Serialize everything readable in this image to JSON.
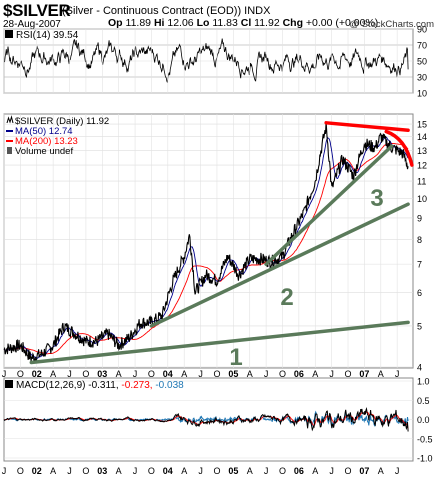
{
  "header": {
    "ticker": "$SILVER",
    "name": "(Silver - Continuous Contract (EOD))",
    "exchange": "INDX",
    "date": "28-Aug-2007",
    "open_label": "Op",
    "open": "11.89",
    "high_label": "Hi",
    "high": "12.06",
    "low_label": "Lo",
    "low": "11.83",
    "close_label": "Cl",
    "close": "11.92",
    "change_label": "Chg",
    "change": "+0.00 (+0.00%)",
    "watermark": "@ StockCharts.com"
  },
  "rsi_panel": {
    "label": "RSI(14) 39.54",
    "ticks": [
      "90",
      "70",
      "50",
      "30",
      "10"
    ]
  },
  "price_panel": {
    "legend": [
      {
        "text": "$SILVER (Daily) 11.92",
        "color": "#000000"
      },
      {
        "text": "MA(50) 12.74",
        "color": "#00008b"
      },
      {
        "text": "MA(200) 13.23",
        "color": "#ff0000"
      },
      {
        "text": "Volume undef",
        "color": "#000000"
      }
    ],
    "y_ticks": [
      "15",
      "14",
      "13",
      "12",
      "11",
      "10",
      "9",
      "8",
      "7",
      "6",
      "5",
      "4"
    ],
    "trendline_labels": [
      "1",
      "2",
      "3"
    ],
    "trendline_color": "#5a7a5a",
    "resistance_color": "#ff0000"
  },
  "macd_panel": {
    "label_prefix": "MACD(12,26,9)",
    "macd": "-0.311,",
    "signal": "-0.273,",
    "histogram": "-0.038",
    "macd_color": "#000000",
    "signal_color": "#ff0000",
    "hist_color": "#1f77b4",
    "ticks": [
      "1.0",
      "0.5",
      "0.0",
      "-0.5",
      "-1.0"
    ]
  },
  "x_axis": {
    "labels": [
      "J",
      "O",
      "02",
      "A",
      "J",
      "O",
      "03",
      "A",
      "J",
      "O",
      "04",
      "A",
      "J",
      "O",
      "05",
      "A",
      "J",
      "O",
      "06",
      "A",
      "J",
      "O",
      "07",
      "A",
      "J"
    ]
  },
  "chart_data": {
    "type": "line",
    "title": "$SILVER (Silver - Continuous Contract (EOD))",
    "scale": "log",
    "ylim": [
      4,
      15.5
    ],
    "y_ticks": [
      4,
      5,
      6,
      7,
      8,
      9,
      10,
      11,
      12,
      13,
      14,
      15
    ],
    "x_range": [
      "2001-06",
      "2007-08"
    ],
    "series": [
      {
        "name": "$SILVER (Daily)",
        "points": [
          [
            "2001-06",
            4.4
          ],
          [
            "2001-09",
            4.5
          ],
          [
            "2001-11",
            4.2
          ],
          [
            "2002-01",
            4.3
          ],
          [
            "2002-03",
            4.5
          ],
          [
            "2002-05",
            5.0
          ],
          [
            "2002-07",
            4.8
          ],
          [
            "2002-09",
            4.6
          ],
          [
            "2002-11",
            4.6
          ],
          [
            "2003-01",
            4.8
          ],
          [
            "2003-03",
            4.5
          ],
          [
            "2003-05",
            4.7
          ],
          [
            "2003-07",
            5.1
          ],
          [
            "2003-09",
            5.1
          ],
          [
            "2003-11",
            5.3
          ],
          [
            "2004-01",
            6.4
          ],
          [
            "2004-03",
            7.3
          ],
          [
            "2004-04",
            8.2
          ],
          [
            "2004-05",
            6.0
          ],
          [
            "2004-07",
            6.6
          ],
          [
            "2004-09",
            6.4
          ],
          [
            "2004-11",
            7.3
          ],
          [
            "2005-01",
            6.6
          ],
          [
            "2005-03",
            7.2
          ],
          [
            "2005-05",
            7.2
          ],
          [
            "2005-07",
            7.1
          ],
          [
            "2005-09",
            7.3
          ],
          [
            "2005-11",
            8.3
          ],
          [
            "2006-01",
            9.3
          ],
          [
            "2006-03",
            11.0
          ],
          [
            "2006-05",
            14.8
          ],
          [
            "2006-06",
            10.5
          ],
          [
            "2006-08",
            12.4
          ],
          [
            "2006-10",
            11.3
          ],
          [
            "2006-12",
            13.5
          ],
          [
            "2007-02",
            13.2
          ],
          [
            "2007-03",
            14.0
          ],
          [
            "2007-05",
            13.2
          ],
          [
            "2007-07",
            12.8
          ],
          [
            "2007-08",
            11.92
          ]
        ]
      },
      {
        "name": "MA(50)",
        "value": 12.74
      },
      {
        "name": "MA(200)",
        "value": 13.23
      }
    ],
    "rsi": {
      "name": "RSI(14)",
      "value": 39.54,
      "ylim": [
        10,
        90
      ]
    },
    "macd": {
      "name": "MACD(12,26,9)",
      "macd": -0.311,
      "signal": -0.273,
      "histogram": -0.038,
      "ylim": [
        -1.0,
        1.0
      ]
    },
    "annotations": [
      {
        "label": "1",
        "from": [
          "2001-11",
          4.1
        ],
        "to": [
          "2007-08",
          5.1
        ]
      },
      {
        "label": "2",
        "from": [
          "2003-09",
          5.0
        ],
        "to": [
          "2007-08",
          9.7
        ]
      },
      {
        "label": "3",
        "from": [
          "2005-06",
          7.0
        ],
        "to": [
          "2007-05",
          13.3
        ]
      },
      {
        "label": "",
        "from": [
          "2006-05",
          15.1
        ],
        "to": [
          "2007-08",
          14.5
        ]
      }
    ]
  }
}
